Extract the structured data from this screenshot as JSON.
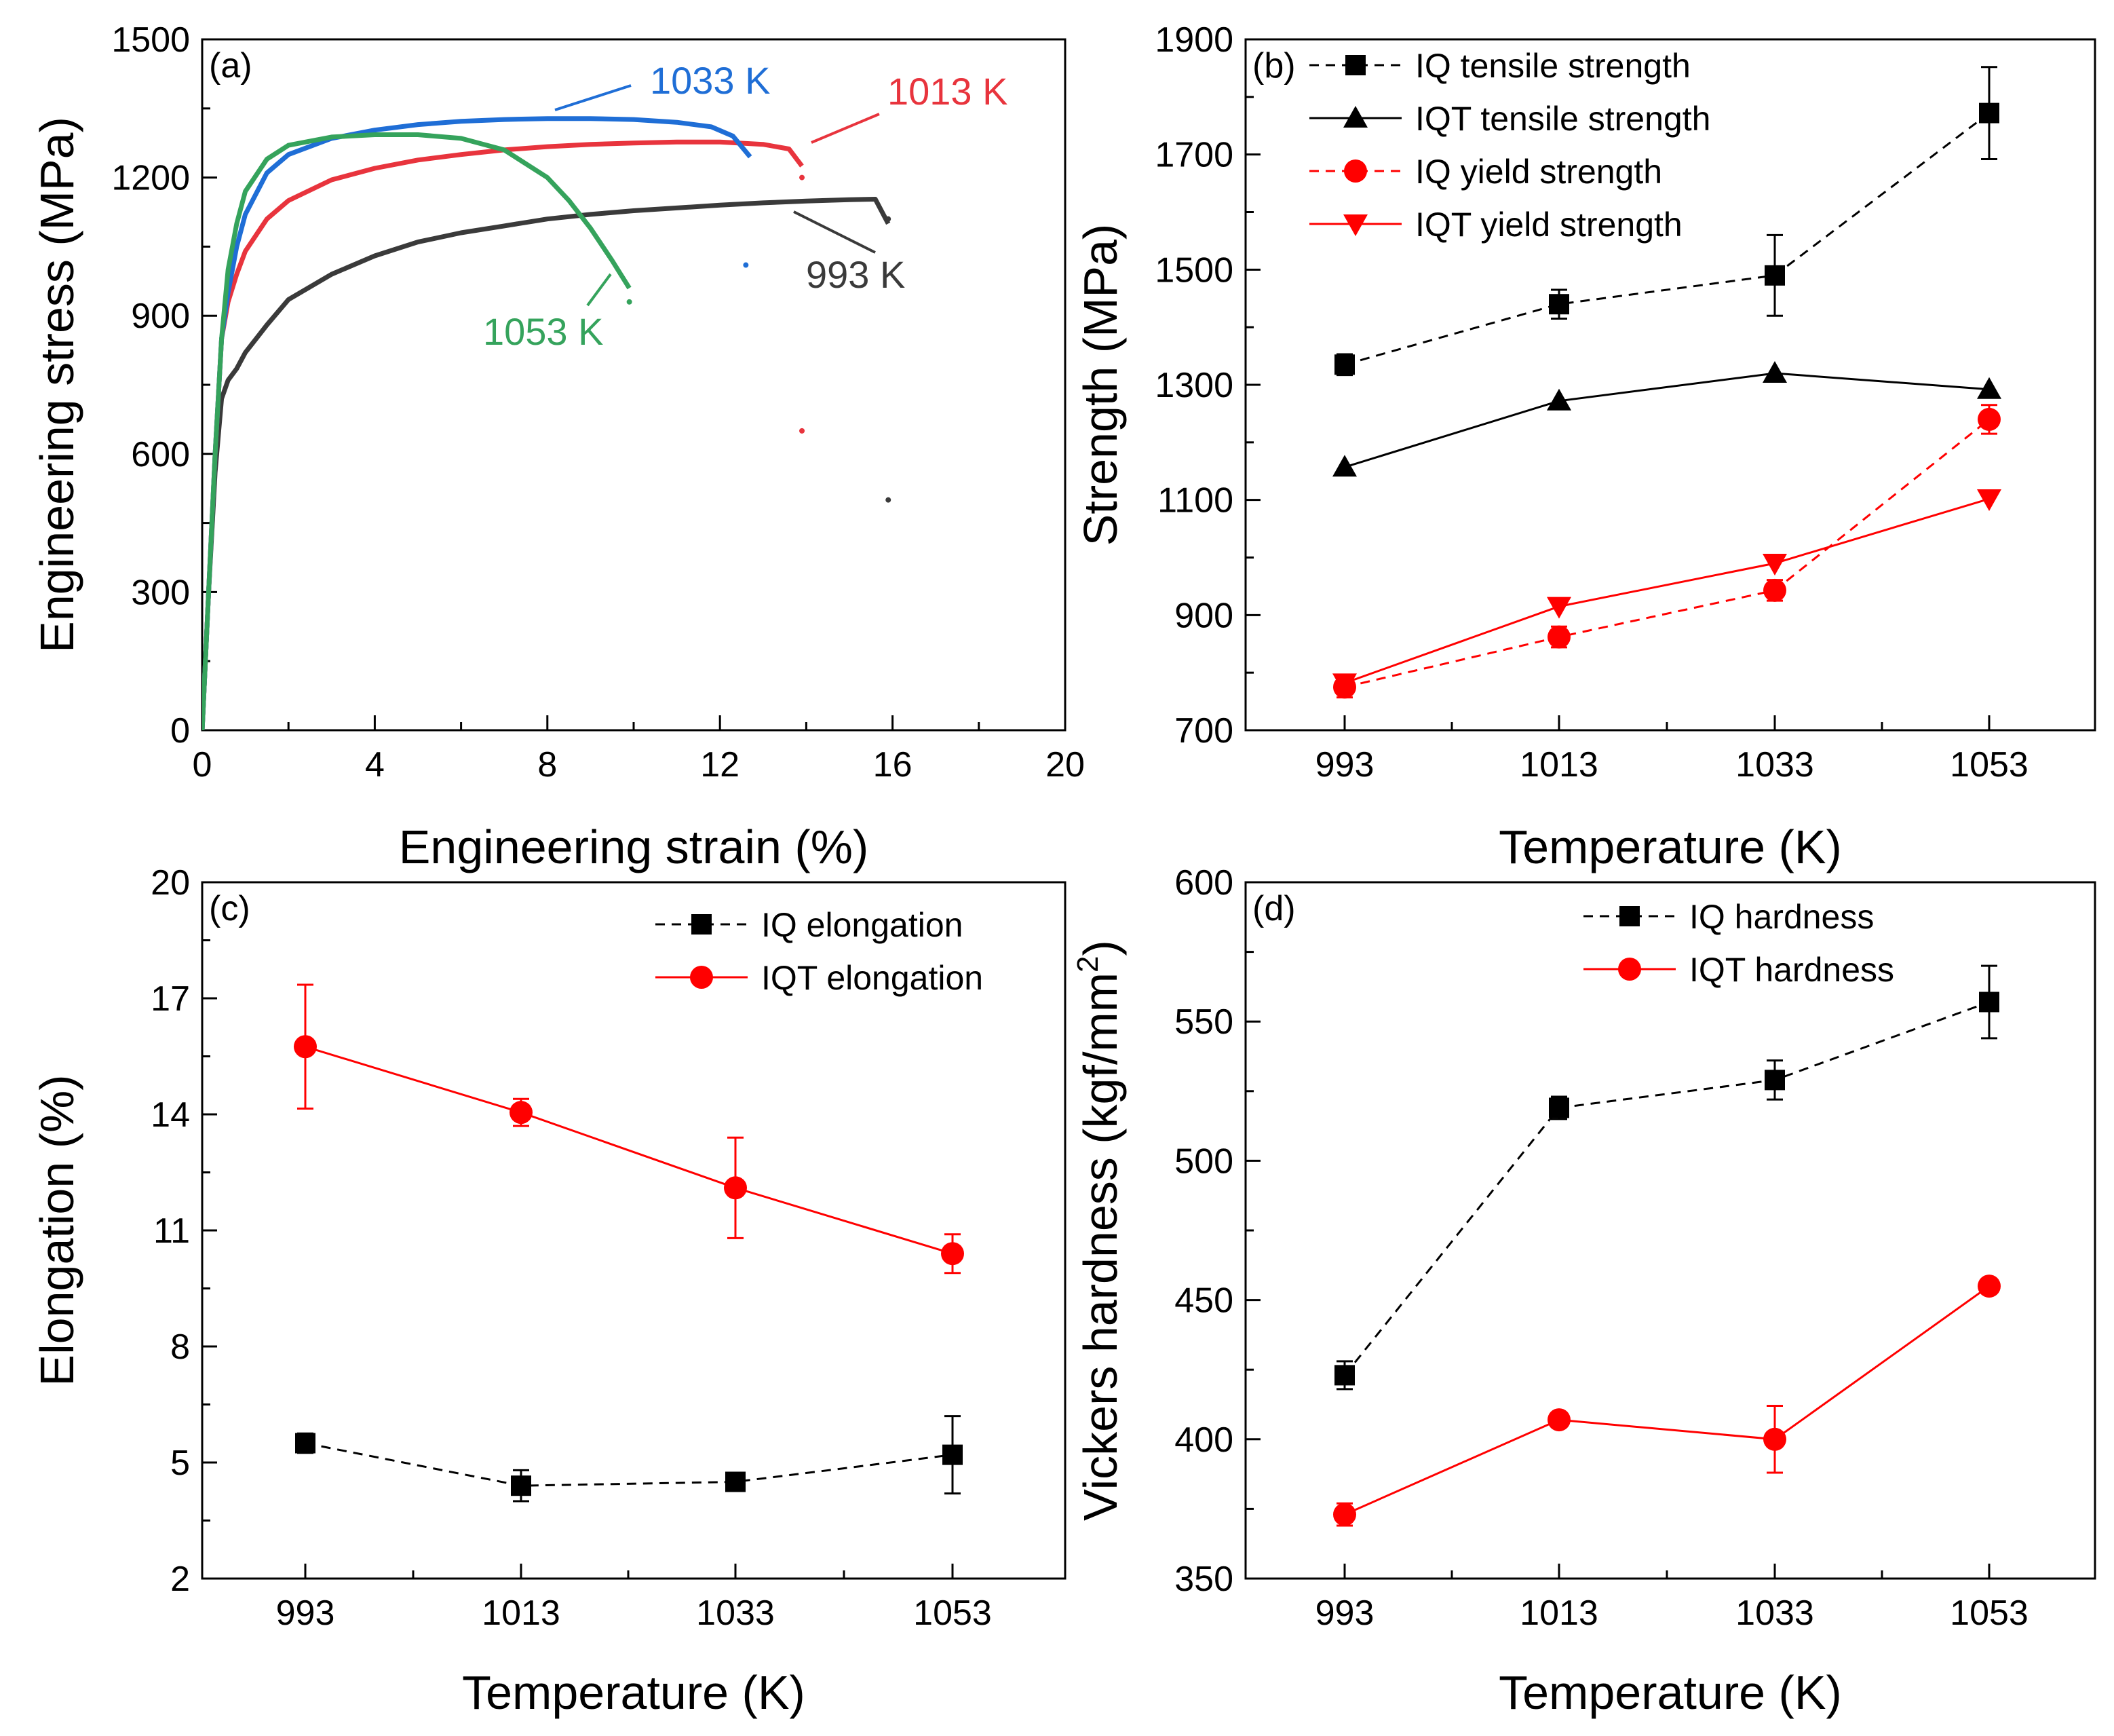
{
  "chart_data": [
    {
      "panel": "(a)",
      "type": "line",
      "xlabel": "Engineering strain (%)",
      "ylabel": "Engineering stress (MPa)",
      "xlim": [
        0,
        20
      ],
      "ylim": [
        0,
        1500
      ],
      "xticks": [
        0,
        4,
        8,
        12,
        16,
        20
      ],
      "yticks": [
        0,
        300,
        600,
        900,
        1200,
        1500
      ],
      "series": [
        {
          "name": "993 K",
          "color": "#3a3a3a",
          "fracture_strain": 15.9,
          "x": [
            0,
            0.15,
            0.3,
            0.45,
            0.6,
            0.8,
            1.0,
            1.5,
            2,
            3,
            4,
            5,
            6,
            7,
            8,
            9,
            10,
            11,
            12,
            13,
            14,
            15,
            15.6,
            15.9
          ],
          "y": [
            0,
            300,
            560,
            720,
            760,
            785,
            820,
            880,
            935,
            990,
            1030,
            1060,
            1080,
            1095,
            1110,
            1120,
            1128,
            1134,
            1140,
            1145,
            1149,
            1152,
            1153,
            1100
          ],
          "dots": [
            [
              15.9,
              1110
            ],
            [
              15.9,
              500
            ]
          ]
        },
        {
          "name": "1013 K",
          "color": "#e8343d",
          "fracture_strain": 13.9,
          "x": [
            0,
            0.15,
            0.3,
            0.45,
            0.6,
            0.8,
            1.0,
            1.5,
            2,
            3,
            4,
            5,
            6,
            7,
            8,
            9,
            10,
            11,
            12,
            13,
            13.6,
            13.9
          ],
          "y": [
            0,
            300,
            600,
            850,
            930,
            990,
            1040,
            1110,
            1150,
            1195,
            1220,
            1238,
            1250,
            1260,
            1267,
            1272,
            1275,
            1277,
            1277,
            1272,
            1262,
            1225
          ],
          "dots": [
            [
              13.9,
              1200
            ],
            [
              13.9,
              650
            ]
          ]
        },
        {
          "name": "1033 K",
          "color": "#1f6ed6",
          "fracture_strain": 12.7,
          "x": [
            0,
            0.15,
            0.3,
            0.45,
            0.6,
            0.8,
            1.0,
            1.5,
            2,
            3,
            4,
            5,
            6,
            7,
            8,
            9,
            10,
            11,
            11.8,
            12.3,
            12.7
          ],
          "y": [
            0,
            300,
            600,
            850,
            950,
            1050,
            1120,
            1210,
            1250,
            1285,
            1303,
            1315,
            1322,
            1326,
            1328,
            1328,
            1326,
            1320,
            1310,
            1290,
            1245
          ],
          "dots": [
            [
              12.6,
              1010
            ]
          ]
        },
        {
          "name": "1053 K",
          "color": "#35a35c",
          "fracture_strain": 9.9,
          "x": [
            0,
            0.15,
            0.3,
            0.45,
            0.6,
            0.8,
            1.0,
            1.5,
            2,
            3,
            4,
            5,
            6,
            7,
            8,
            8.5,
            9,
            9.5,
            9.9
          ],
          "y": [
            0,
            300,
            600,
            850,
            1000,
            1100,
            1170,
            1240,
            1270,
            1288,
            1293,
            1293,
            1285,
            1260,
            1200,
            1150,
            1090,
            1020,
            960
          ],
          "dots": [
            [
              9.9,
              930
            ]
          ]
        }
      ],
      "annotations": [
        "1033 K",
        "1013 K",
        "993 K",
        "1053 K"
      ]
    },
    {
      "panel": "(b)",
      "type": "line",
      "xlabel": "Temperature (K)",
      "ylabel": "Strength (MPa)",
      "categories": [
        "993",
        "1013",
        "1033",
        "1053"
      ],
      "ylim": [
        700,
        1900
      ],
      "yticks": [
        700,
        900,
        1100,
        1300,
        1500,
        1700,
        1900
      ],
      "series": [
        {
          "name": "IQ tensile strength",
          "color": "#000000",
          "dash": true,
          "marker": "square",
          "values": [
            1335,
            1440,
            1490,
            1772
          ],
          "errors": [
            18,
            25,
            70,
            80
          ]
        },
        {
          "name": "IQT tensile strength",
          "color": "#000000",
          "dash": false,
          "marker": "triangle-up",
          "values": [
            1157,
            1272,
            1320,
            1292
          ],
          "errors": [
            0,
            0,
            0,
            0
          ]
        },
        {
          "name": "IQ yield strength",
          "color": "#ff0000",
          "dash": true,
          "marker": "circle",
          "values": [
            775,
            862,
            943,
            1240
          ],
          "errors": [
            18,
            18,
            18,
            25
          ]
        },
        {
          "name": "IQT yield strength",
          "color": "#ff0000",
          "dash": false,
          "marker": "triangle-down",
          "values": [
            782,
            915,
            990,
            1102
          ],
          "errors": [
            0,
            0,
            0,
            0
          ]
        }
      ]
    },
    {
      "panel": "(c)",
      "type": "line",
      "xlabel": "Temperature (K)",
      "ylabel": "Elongation (%)",
      "categories": [
        "993",
        "1013",
        "1033",
        "1053"
      ],
      "ylim": [
        2,
        20
      ],
      "yticks": [
        2,
        5,
        8,
        11,
        14,
        17,
        20
      ],
      "series": [
        {
          "name": "IQ elongation",
          "color": "#000000",
          "dash": true,
          "marker": "square",
          "values": [
            5.5,
            4.4,
            4.5,
            5.2
          ],
          "errors": [
            0.25,
            0.4,
            0.1,
            1.0
          ]
        },
        {
          "name": "IQT elongation",
          "color": "#ff0000",
          "dash": false,
          "marker": "circle",
          "values": [
            15.75,
            14.05,
            12.1,
            10.4
          ],
          "errors": [
            1.6,
            0.35,
            1.3,
            0.5
          ]
        }
      ]
    },
    {
      "panel": "(d)",
      "type": "line",
      "xlabel": "Temperature (K)",
      "ylabel": "Vickers hardness (kgf/mm",
      "ylabel_sup": "2",
      "ylabel_end": ")",
      "categories": [
        "993",
        "1013",
        "1033",
        "1053"
      ],
      "ylim": [
        350,
        600
      ],
      "yticks": [
        350,
        400,
        450,
        500,
        550,
        600
      ],
      "series": [
        {
          "name": "IQ hardness",
          "color": "#000000",
          "dash": true,
          "marker": "square",
          "values": [
            423,
            519,
            529,
            557
          ],
          "errors": [
            5,
            4,
            7,
            13
          ]
        },
        {
          "name": "IQT hardness",
          "color": "#ff0000",
          "dash": false,
          "marker": "circle",
          "values": [
            373,
            407,
            400,
            455
          ],
          "errors": [
            4,
            2,
            12,
            2
          ]
        }
      ]
    }
  ]
}
